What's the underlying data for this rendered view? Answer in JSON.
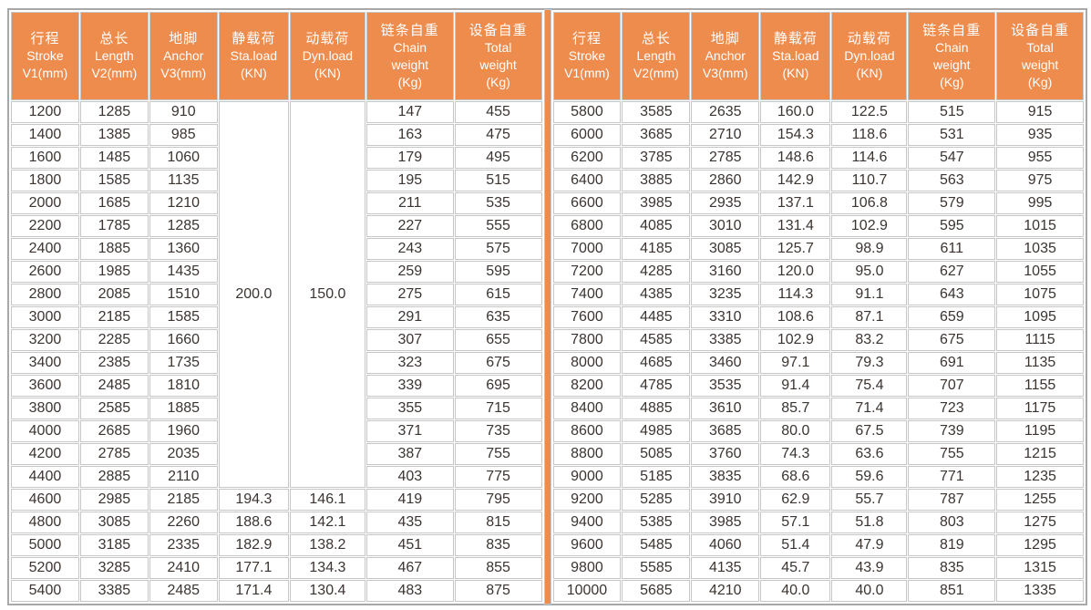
{
  "colors": {
    "header_bg": "#ee8c4d",
    "divider": "#ee8c4d",
    "grid_line": "#c7c7c7",
    "outer_border": "#a8a8a8",
    "body_text": "#3b3431",
    "header_text": "#ffffff"
  },
  "table": {
    "columns": [
      {
        "lines": [
          "行程",
          "Stroke",
          "V1(mm)"
        ]
      },
      {
        "lines": [
          "总长",
          "Length",
          "V2(mm)"
        ]
      },
      {
        "lines": [
          "地脚",
          "Anchor",
          "V3(mm)"
        ]
      },
      {
        "lines": [
          "静载荷",
          "Sta.load",
          "(KN)"
        ]
      },
      {
        "lines": [
          "动载荷",
          "Dyn.load",
          "(KN)"
        ]
      },
      {
        "lines": [
          "链条自重",
          "Chain",
          "weight",
          "(Kg)"
        ]
      },
      {
        "lines": [
          "设备自重",
          "Total",
          "weight",
          "(Kg)"
        ]
      }
    ],
    "left": {
      "merge": {
        "start_row": 0,
        "row_count": 17,
        "sta_load": "200.0",
        "dyn_load": "150.0"
      },
      "rows": [
        [
          "1200",
          "1285",
          "910",
          null,
          null,
          "147",
          "455"
        ],
        [
          "1400",
          "1385",
          "985",
          null,
          null,
          "163",
          "475"
        ],
        [
          "1600",
          "1485",
          "1060",
          null,
          null,
          "179",
          "495"
        ],
        [
          "1800",
          "1585",
          "1135",
          null,
          null,
          "195",
          "515"
        ],
        [
          "2000",
          "1685",
          "1210",
          null,
          null,
          "211",
          "535"
        ],
        [
          "2200",
          "1785",
          "1285",
          null,
          null,
          "227",
          "555"
        ],
        [
          "2400",
          "1885",
          "1360",
          null,
          null,
          "243",
          "575"
        ],
        [
          "2600",
          "1985",
          "1435",
          null,
          null,
          "259",
          "595"
        ],
        [
          "2800",
          "2085",
          "1510",
          null,
          null,
          "275",
          "615"
        ],
        [
          "3000",
          "2185",
          "1585",
          null,
          null,
          "291",
          "635"
        ],
        [
          "3200",
          "2285",
          "1660",
          null,
          null,
          "307",
          "655"
        ],
        [
          "3400",
          "2385",
          "1735",
          null,
          null,
          "323",
          "675"
        ],
        [
          "3600",
          "2485",
          "1810",
          null,
          null,
          "339",
          "695"
        ],
        [
          "3800",
          "2585",
          "1885",
          null,
          null,
          "355",
          "715"
        ],
        [
          "4000",
          "2685",
          "1960",
          null,
          null,
          "371",
          "735"
        ],
        [
          "4200",
          "2785",
          "2035",
          null,
          null,
          "387",
          "755"
        ],
        [
          "4400",
          "2885",
          "2110",
          null,
          null,
          "403",
          "775"
        ],
        [
          "4600",
          "2985",
          "2185",
          "194.3",
          "146.1",
          "419",
          "795"
        ],
        [
          "4800",
          "3085",
          "2260",
          "188.6",
          "142.1",
          "435",
          "815"
        ],
        [
          "5000",
          "3185",
          "2335",
          "182.9",
          "138.2",
          "451",
          "835"
        ],
        [
          "5200",
          "3285",
          "2410",
          "177.1",
          "134.3",
          "467",
          "855"
        ],
        [
          "5400",
          "3385",
          "2485",
          "171.4",
          "130.4",
          "483",
          "875"
        ]
      ]
    },
    "right": {
      "merge": null,
      "rows": [
        [
          "5800",
          "3585",
          "2635",
          "160.0",
          "122.5",
          "515",
          "915"
        ],
        [
          "6000",
          "3685",
          "2710",
          "154.3",
          "118.6",
          "531",
          "935"
        ],
        [
          "6200",
          "3785",
          "2785",
          "148.6",
          "114.6",
          "547",
          "955"
        ],
        [
          "6400",
          "3885",
          "2860",
          "142.9",
          "110.7",
          "563",
          "975"
        ],
        [
          "6600",
          "3985",
          "2935",
          "137.1",
          "106.8",
          "579",
          "995"
        ],
        [
          "6800",
          "4085",
          "3010",
          "131.4",
          "102.9",
          "595",
          "1015"
        ],
        [
          "7000",
          "4185",
          "3085",
          "125.7",
          "98.9",
          "611",
          "1035"
        ],
        [
          "7200",
          "4285",
          "3160",
          "120.0",
          "95.0",
          "627",
          "1055"
        ],
        [
          "7400",
          "4385",
          "3235",
          "114.3",
          "91.1",
          "643",
          "1075"
        ],
        [
          "7600",
          "4485",
          "3310",
          "108.6",
          "87.1",
          "659",
          "1095"
        ],
        [
          "7800",
          "4585",
          "3385",
          "102.9",
          "83.2",
          "675",
          "1115"
        ],
        [
          "8000",
          "4685",
          "3460",
          "97.1",
          "79.3",
          "691",
          "1135"
        ],
        [
          "8200",
          "4785",
          "3535",
          "91.4",
          "75.4",
          "707",
          "1155"
        ],
        [
          "8400",
          "4885",
          "3610",
          "85.7",
          "71.4",
          "723",
          "1175"
        ],
        [
          "8600",
          "4985",
          "3685",
          "80.0",
          "67.5",
          "739",
          "1195"
        ],
        [
          "8800",
          "5085",
          "3760",
          "74.3",
          "63.6",
          "755",
          "1215"
        ],
        [
          "9000",
          "5185",
          "3835",
          "68.6",
          "59.6",
          "771",
          "1235"
        ],
        [
          "9200",
          "5285",
          "3910",
          "62.9",
          "55.7",
          "787",
          "1255"
        ],
        [
          "9400",
          "5385",
          "3985",
          "57.1",
          "51.8",
          "803",
          "1275"
        ],
        [
          "9600",
          "5485",
          "4060",
          "51.4",
          "47.9",
          "819",
          "1295"
        ],
        [
          "9800",
          "5585",
          "4135",
          "45.7",
          "43.9",
          "835",
          "1315"
        ],
        [
          "10000",
          "5685",
          "4210",
          "40.0",
          "40.0",
          "851",
          "1335"
        ]
      ]
    }
  }
}
